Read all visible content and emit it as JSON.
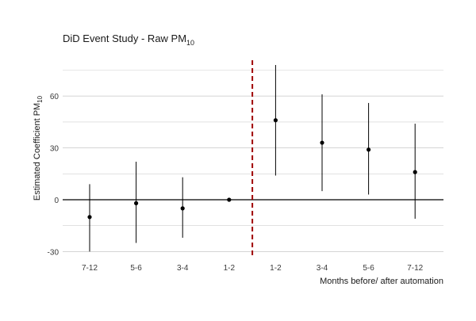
{
  "chart_data": {
    "type": "scatter",
    "title_main": "DiD Event Study - Raw PM",
    "title_sub": "10",
    "ylabel_main": "Estimated Coefficient PM",
    "ylabel_sub": "10",
    "xlabel": "Months before/ after automation",
    "categories": [
      "7-12",
      "5-6",
      "3-4",
      "1-2",
      "1-2",
      "3-4",
      "5-6",
      "7-12"
    ],
    "period": [
      "before",
      "before",
      "before",
      "before",
      "after",
      "after",
      "after",
      "after"
    ],
    "series": [
      {
        "estimate": [
          -10,
          -2,
          -5,
          0,
          46,
          33,
          29,
          16
        ],
        "ci_low": [
          -30,
          -25,
          -22,
          0,
          14,
          5,
          3,
          -11
        ],
        "ci_high": [
          9,
          22,
          13,
          0,
          78,
          61,
          56,
          44
        ]
      }
    ],
    "yticks": [
      -30,
      0,
      30,
      60
    ],
    "ylim": [
      -34,
      78
    ],
    "reference_line_y": 0,
    "event_line_after_category_index": 3,
    "grid": true,
    "colors": {
      "point": "#000000",
      "errorbar": "#000000",
      "grid": "#cfcfcf",
      "zero_line": "#000000",
      "event_line": "#a00000",
      "text": "#3a3a3a"
    }
  }
}
